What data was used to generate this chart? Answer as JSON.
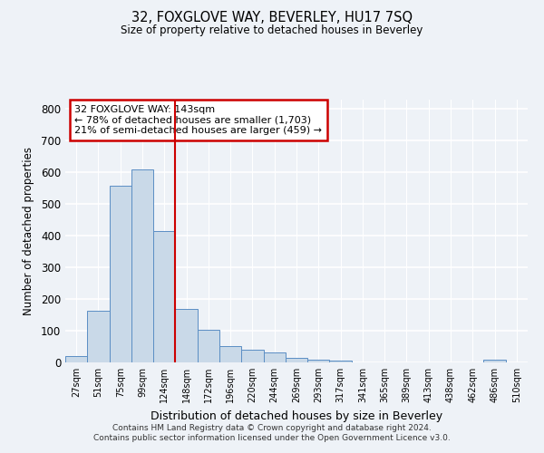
{
  "title": "32, FOXGLOVE WAY, BEVERLEY, HU17 7SQ",
  "subtitle": "Size of property relative to detached houses in Beverley",
  "xlabel": "Distribution of detached houses by size in Beverley",
  "ylabel": "Number of detached properties",
  "bar_labels": [
    "27sqm",
    "51sqm",
    "75sqm",
    "99sqm",
    "124sqm",
    "148sqm",
    "172sqm",
    "196sqm",
    "220sqm",
    "244sqm",
    "269sqm",
    "293sqm",
    "317sqm",
    "341sqm",
    "365sqm",
    "389sqm",
    "413sqm",
    "438sqm",
    "462sqm",
    "486sqm",
    "510sqm"
  ],
  "bar_values": [
    20,
    163,
    557,
    611,
    416,
    170,
    103,
    51,
    40,
    32,
    14,
    10,
    6,
    0,
    0,
    0,
    0,
    0,
    0,
    8,
    0
  ],
  "bar_color": "#c9d9e8",
  "bar_edge_color": "#5b8ec4",
  "ylim": [
    0,
    830
  ],
  "yticks": [
    0,
    100,
    200,
    300,
    400,
    500,
    600,
    700,
    800
  ],
  "vline_x_index": 4.5,
  "vline_color": "#cc0000",
  "annotation_box_text": "32 FOXGLOVE WAY: 143sqm\n← 78% of detached houses are smaller (1,703)\n21% of semi-detached houses are larger (459) →",
  "annotation_box_color": "#cc0000",
  "background_color": "#eef2f7",
  "grid_color": "#ffffff",
  "footer_line1": "Contains HM Land Registry data © Crown copyright and database right 2024.",
  "footer_line2": "Contains public sector information licensed under the Open Government Licence v3.0."
}
